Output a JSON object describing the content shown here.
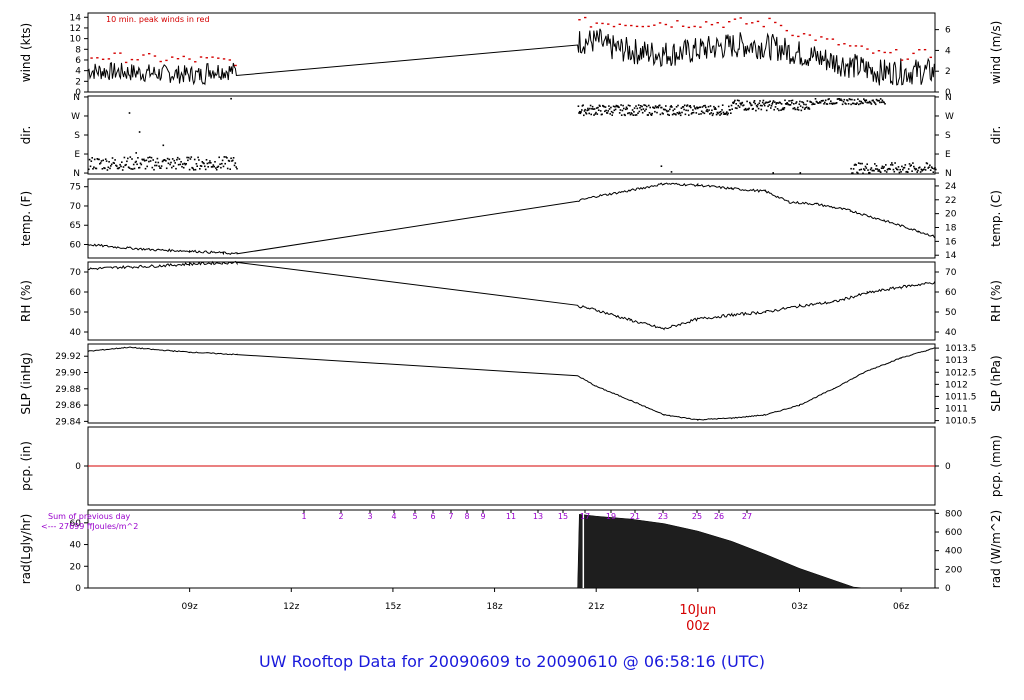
{
  "footer": {
    "title": "UW Rooftop Data for 20090609  to  20090610 @ 06:58:16  (UTC)"
  },
  "colors": {
    "peak": "#d40000",
    "pcp_line": "#d40000",
    "rad_note": "#9900cc",
    "date_label": "#d40000",
    "footer": "#1a1adb"
  },
  "chart_data": [
    {
      "id": "wind",
      "type": "line",
      "ylabel_left": "wind (kts)",
      "ylabel_right": "wind (m/s)",
      "ylim_left": [
        0,
        14.8
      ],
      "yticks_left": [
        "0",
        "2",
        "4",
        "6",
        "8",
        "10",
        "12",
        "14"
      ],
      "ylim_right": [
        0,
        7.6
      ],
      "yticks_right": [
        "0",
        "2",
        "4",
        "6"
      ],
      "annotation": "10 min. peak winds in red",
      "gap_hours": [
        10.4,
        20.45
      ],
      "series": [
        {
          "values_summary": {
            "before_gap_mean_kts": 4,
            "after_gap_mean_kts": 8,
            "end_mean_kts": 3
          }
        }
      ],
      "peaks_red": true
    },
    {
      "id": "dir",
      "type": "scatter",
      "ylabel_left": "dir.",
      "ylabel_right": "dir.",
      "yticks_left": [
        "N",
        "E",
        "S",
        "W",
        "N"
      ],
      "yticks_right": [
        "N",
        "E",
        "S",
        "W",
        "N"
      ],
      "cluster_labels": {
        "early": "E",
        "midday": "W",
        "late": "N/E"
      }
    },
    {
      "id": "temp",
      "type": "line",
      "ylabel_left": "temp. (F)",
      "ylabel_right": "temp. (C)",
      "ylim_left": [
        56.5,
        77
      ],
      "yticks_left": [
        "60",
        "65",
        "70",
        "75"
      ],
      "ylim_right": [
        13.6,
        25
      ],
      "yticks_right": [
        "14",
        "16",
        "18",
        "20",
        "22",
        "24"
      ],
      "points_hours_F": [
        [
          6.0,
          60.0
        ],
        [
          7.0,
          59.2
        ],
        [
          8.0,
          58.6
        ],
        [
          9.0,
          58.3
        ],
        [
          10.0,
          57.8
        ],
        [
          10.4,
          57.6
        ],
        [
          20.45,
          71.3
        ],
        [
          21.0,
          72.5
        ],
        [
          22.0,
          74.0
        ],
        [
          23.0,
          75.8
        ],
        [
          24.0,
          75.4
        ],
        [
          25.0,
          74.5
        ],
        [
          26.0,
          73.8
        ],
        [
          26.7,
          71.0
        ],
        [
          27.5,
          70.5
        ],
        [
          28.5,
          68.8
        ],
        [
          29.5,
          66.2
        ],
        [
          30.5,
          63.5
        ],
        [
          31.0,
          62.0
        ]
      ]
    },
    {
      "id": "rh",
      "type": "line",
      "ylabel_left": "RH (%)",
      "ylabel_right": "RH (%)",
      "ylim_left": [
        36,
        75
      ],
      "yticks_left": [
        "40",
        "50",
        "60",
        "70"
      ],
      "ylim_right": [
        36,
        75
      ],
      "yticks_right": [
        "40",
        "50",
        "60",
        "70"
      ],
      "points_hours_pct": [
        [
          6.0,
          71.5
        ],
        [
          7.0,
          72.4
        ],
        [
          8.0,
          73.0
        ],
        [
          9.0,
          74.0
        ],
        [
          10.0,
          74.6
        ],
        [
          10.4,
          74.8
        ],
        [
          20.45,
          53.0
        ],
        [
          21.0,
          51.0
        ],
        [
          22.0,
          46.0
        ],
        [
          23.0,
          41.5
        ],
        [
          24.0,
          46.5
        ],
        [
          25.0,
          48.5
        ],
        [
          26.0,
          50.0
        ],
        [
          27.0,
          53.0
        ],
        [
          28.0,
          55.0
        ],
        [
          29.0,
          59.5
        ],
        [
          30.0,
          62.5
        ],
        [
          31.0,
          64.8
        ]
      ]
    },
    {
      "id": "slp",
      "type": "line",
      "ylabel_left": "SLP (inHg)",
      "ylabel_right": "SLP (hPa)",
      "ylim_left": [
        29.838,
        29.935
      ],
      "yticks_left": [
        "29.84",
        "29.86",
        "29.88",
        "29.90",
        "29.92"
      ],
      "ylim_right": [
        1010.4,
        1013.67
      ],
      "yticks_right": [
        "1010.5",
        "1011",
        "1011.5",
        "1012",
        "1012.5",
        "1013",
        "1013.5"
      ],
      "points_hours_inHg": [
        [
          6.0,
          29.926
        ],
        [
          7.2,
          29.931
        ],
        [
          8.0,
          29.928
        ],
        [
          9.0,
          29.925
        ],
        [
          10.4,
          29.922
        ],
        [
          20.45,
          29.896
        ],
        [
          21.0,
          29.883
        ],
        [
          22.0,
          29.866
        ],
        [
          23.0,
          29.848
        ],
        [
          24.0,
          29.842
        ],
        [
          25.0,
          29.844
        ],
        [
          26.0,
          29.848
        ],
        [
          27.0,
          29.86
        ],
        [
          28.0,
          29.88
        ],
        [
          29.0,
          29.902
        ],
        [
          30.0,
          29.918
        ],
        [
          31.0,
          29.93
        ]
      ]
    },
    {
      "id": "pcp",
      "type": "line",
      "ylabel_left": "pcp. (in)",
      "ylabel_right": "pcp. (mm)",
      "yticks_left": [
        "0"
      ],
      "yticks_right": [
        "0"
      ],
      "value": 0
    },
    {
      "id": "rad",
      "type": "area",
      "ylabel_left": "rad(Lgly/hr)",
      "ylabel_right": "rad (W/m^2)",
      "ylim_left": [
        0,
        71.8
      ],
      "yticks_left": [
        "0",
        "20",
        "40",
        "60"
      ],
      "ylim_right": [
        0,
        836
      ],
      "yticks_right": [
        "0",
        "200",
        "400",
        "600",
        "800"
      ],
      "note_line1": "Sum of previous day",
      "note_line2": "<---  27699 ffJoules/m^2",
      "hour_marks": [
        "1",
        "2",
        "3",
        "4",
        "5",
        "6",
        "7",
        "8",
        "9",
        "11",
        "13",
        "15",
        "17",
        "19",
        "21",
        "23",
        "25",
        "26",
        "27"
      ],
      "points_hours_Wm2": [
        [
          20.45,
          0
        ],
        [
          20.5,
          790
        ],
        [
          21.0,
          770
        ],
        [
          22.0,
          740
        ],
        [
          23.0,
          690
        ],
        [
          24.0,
          610
        ],
        [
          25.0,
          500
        ],
        [
          26.0,
          360
        ],
        [
          27.0,
          210
        ],
        [
          28.0,
          85
        ],
        [
          28.6,
          10
        ],
        [
          28.9,
          0
        ]
      ]
    }
  ],
  "x_axis": {
    "ticks": [
      "09z",
      "12z",
      "15z",
      "18z",
      "21z",
      "03z",
      "06z"
    ],
    "date_label": "10Jun",
    "date_sublabel": "00z",
    "xlim_hours": [
      6.0,
      31.0
    ]
  }
}
